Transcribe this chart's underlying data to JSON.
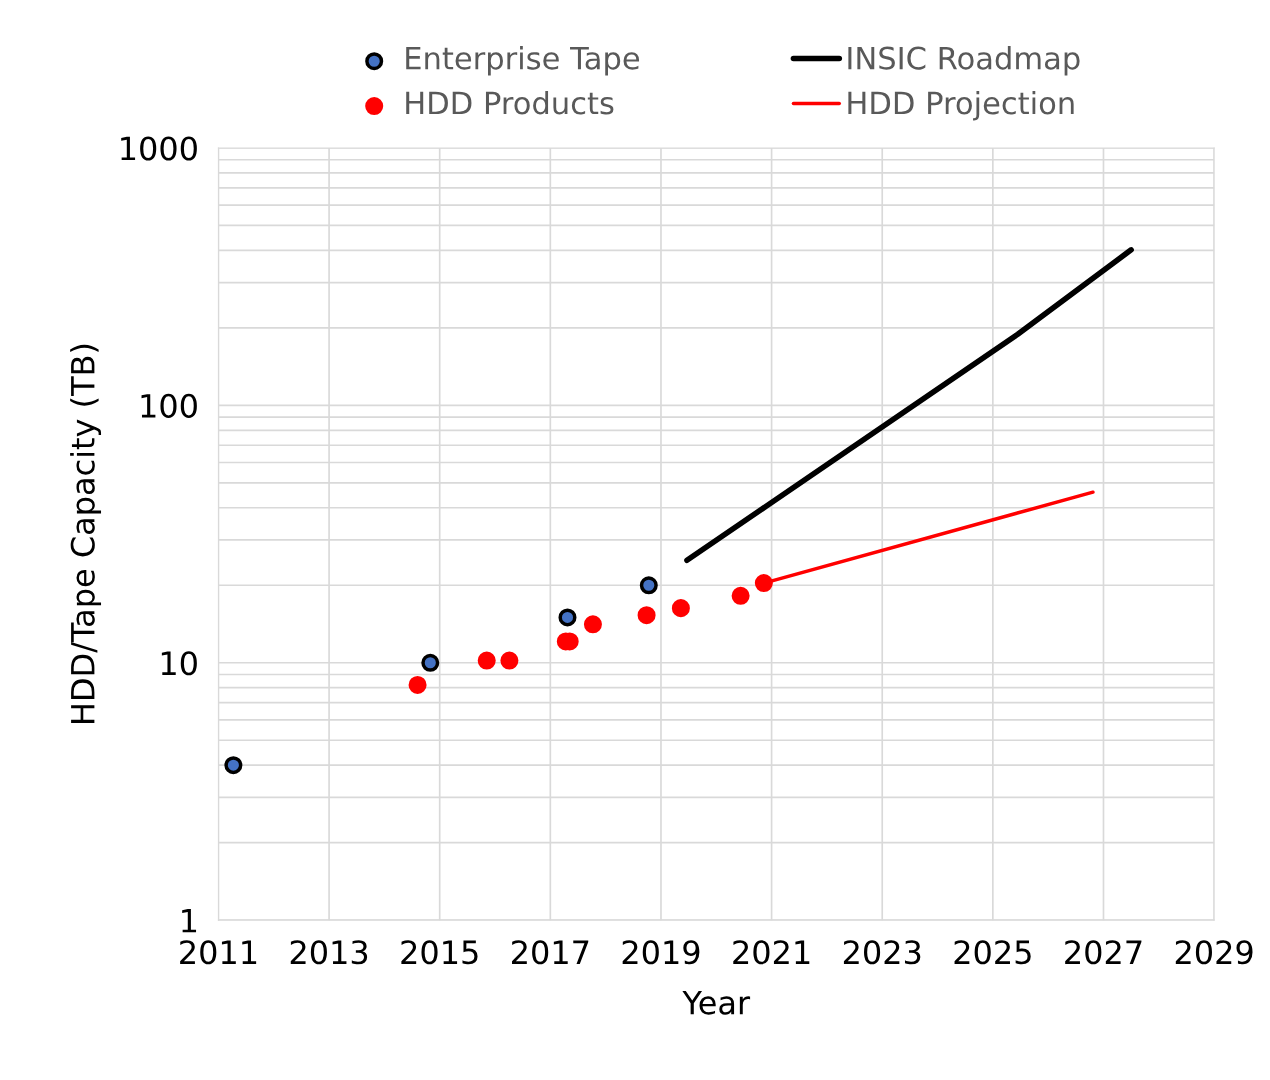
{
  "chart_data": {
    "type": "scatter",
    "xlabel": "Year",
    "ylabel": "HDD/Tape Capacity (TB)",
    "log": "y",
    "grid": true,
    "legend": "top",
    "marker": "circle",
    "xlim": [
      2011,
      2029
    ],
    "xticks": [
      2011,
      2013,
      2015,
      2017,
      2019,
      2021,
      2023,
      2025,
      2027,
      2029
    ],
    "ylim": [
      1,
      1000
    ],
    "yticks": [
      1,
      {
        "value": 2,
        "label": null
      },
      {
        "value": 3,
        "label": null
      },
      {
        "value": 4,
        "label": null
      },
      {
        "value": 5,
        "label": null
      },
      {
        "value": 6,
        "label": null
      },
      {
        "value": 7,
        "label": null
      },
      {
        "value": 8,
        "label": null
      },
      {
        "value": 9,
        "label": null
      },
      10,
      {
        "value": 20,
        "label": null
      },
      {
        "value": 30,
        "label": null
      },
      {
        "value": 40,
        "label": null
      },
      {
        "value": 50,
        "label": null
      },
      {
        "value": 60,
        "label": null
      },
      {
        "value": 70,
        "label": null
      },
      {
        "value": 80,
        "label": null
      },
      {
        "value": 90,
        "label": null
      },
      100,
      {
        "value": 200,
        "label": null
      },
      {
        "value": 300,
        "label": null
      },
      {
        "value": 400,
        "label": null
      },
      {
        "value": 500,
        "label": null
      },
      {
        "value": 600,
        "label": null
      },
      {
        "value": 700,
        "label": null
      },
      {
        "value": 800,
        "label": null
      },
      {
        "value": 900,
        "label": null
      },
      1000
    ],
    "series": [
      {
        "name": "Enterprise Tape",
        "color": "#000000",
        "x": [
          2011.27,
          2014.83,
          2017.31,
          2018.78
        ],
        "values": [
          4.0,
          10,
          15,
          20
        ]
      },
      {
        "name": "HDD Products",
        "color": "#ff0000",
        "x": [
          2014.6,
          2015.85,
          2016.26,
          2017.28,
          2017.35,
          2017.77,
          2018.74,
          2019.36,
          2020.44,
          2020.86
        ],
        "values": [
          8.2,
          10.2,
          10.2,
          12.1,
          12.1,
          14.1,
          15.3,
          16.3,
          18.2,
          20.4
        ]
      },
      {
        "name": "INSIC Roadmap",
        "type": "line",
        "marker": "none",
        "color": "#000000",
        "x": [
          2019.47,
          2025.45,
          2027.5
        ],
        "values": [
          25,
          189,
          402
        ]
      },
      {
        "name": "HDD Projection",
        "type": "line",
        "marker": "none",
        "color": "#ff0000",
        "x": [
          2020.86,
          2026.81
        ],
        "values": [
          20.4,
          46
        ]
      }
    ]
  }
}
